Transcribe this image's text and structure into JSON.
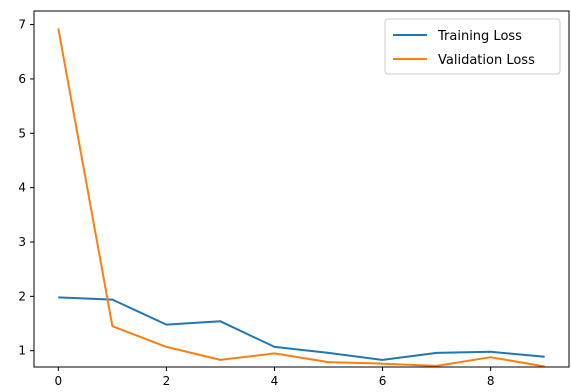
{
  "chart_data": {
    "type": "line",
    "title": "",
    "xlabel": "",
    "ylabel": "",
    "x": [
      0,
      1,
      2,
      3,
      4,
      5,
      6,
      7,
      8,
      9
    ],
    "xticks": [
      0,
      2,
      4,
      6,
      8
    ],
    "yticks": [
      1,
      2,
      3,
      4,
      5,
      6,
      7
    ],
    "xlim": [
      -0.45,
      9.45
    ],
    "ylim": [
      0.7,
      7.25
    ],
    "grid": false,
    "legend_position": "top-right",
    "series": [
      {
        "name": "Training Loss",
        "color": "#1f77b4",
        "values": [
          1.98,
          1.94,
          1.48,
          1.54,
          1.07,
          0.96,
          0.83,
          0.96,
          0.98,
          0.89
        ]
      },
      {
        "name": "Validation Loss",
        "color": "#ff7f0e",
        "values": [
          6.93,
          1.45,
          1.07,
          0.83,
          0.95,
          0.79,
          0.76,
          0.72,
          0.88,
          0.71
        ]
      }
    ]
  }
}
